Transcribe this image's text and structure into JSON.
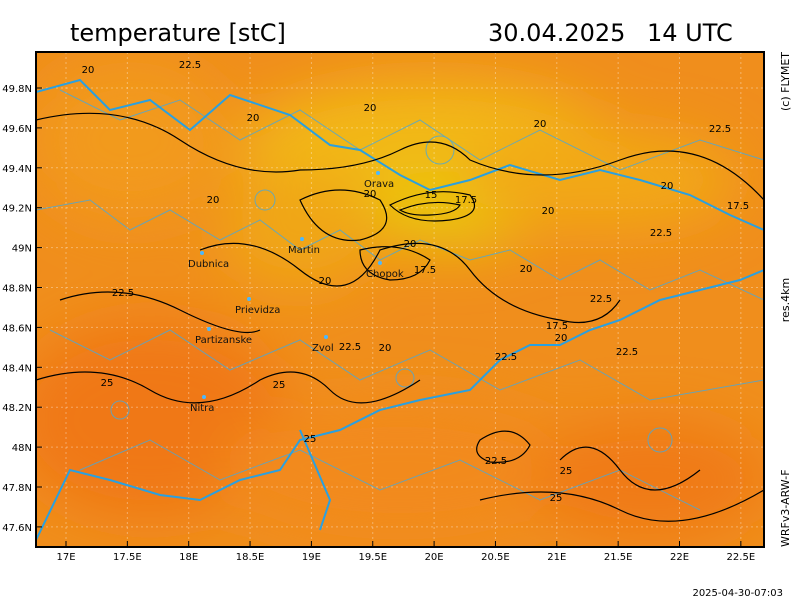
{
  "header": {
    "title": "temperature [stC]",
    "date": "30.04.2025",
    "time": "14 UTC"
  },
  "side_labels": [
    "(c) FLYMET",
    "res.4km",
    "WRFv3-ARW-F"
  ],
  "footer": "2025-04-30-07:03",
  "lon_labels": [
    "17E",
    "17.5E",
    "18E",
    "18.5E",
    "19E",
    "19.5E",
    "20E",
    "20.5E",
    "21E",
    "21.5E",
    "22E",
    "22.5E"
  ],
  "lat_labels": [
    "49.8N",
    "49.6N",
    "49.4N",
    "49.2N",
    "49N",
    "48.8N",
    "48.6N",
    "48.4N",
    "48.2N",
    "48N",
    "47.8N",
    "47.6N"
  ],
  "cities": [
    "Orava",
    "Martin",
    "Dubnica",
    "Chopok",
    "Prievidza",
    "Partizanske",
    "Zvol",
    "Nitra"
  ],
  "contour_labels": [
    "20",
    "22.5",
    "20",
    "20",
    "20",
    "22.5",
    "15",
    "17.5",
    "20",
    "20",
    "20",
    "20",
    "17.5",
    "22.5",
    "20",
    "17.5",
    "20",
    "20",
    "22.5",
    "22.5",
    "17.5",
    "20",
    "22.5",
    "20",
    "22.5",
    "22.5",
    "25",
    "25",
    "25",
    "22.5",
    "25",
    "25"
  ]
}
